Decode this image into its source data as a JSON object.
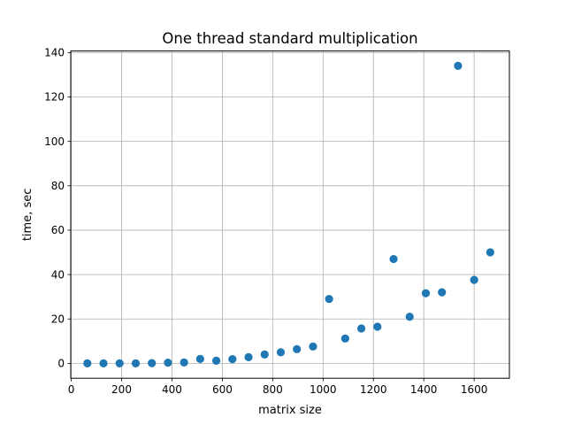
{
  "chart_data": {
    "type": "scatter",
    "title": "One thread standard multiplication",
    "xlabel": "matrix size",
    "ylabel": "time, sec",
    "xlim": [
      -2,
      1740
    ],
    "ylim": [
      -6.7,
      140.7
    ],
    "xticks": [
      0,
      200,
      400,
      600,
      800,
      1000,
      1200,
      1400,
      1600
    ],
    "yticks": [
      0,
      20,
      40,
      60,
      80,
      100,
      120,
      140
    ],
    "grid": true,
    "marker_color": "#1f77b4",
    "series": [
      {
        "x": [
          64,
          128,
          192,
          256,
          320,
          384,
          448,
          512,
          576,
          640,
          704,
          768,
          832,
          896,
          960,
          1024,
          1088,
          1152,
          1216,
          1280,
          1344,
          1408,
          1472,
          1536,
          1600,
          1664
        ],
        "y": [
          0.0,
          0.0,
          0.0,
          0.0,
          0.1,
          0.3,
          0.4,
          2.0,
          1.2,
          1.9,
          2.8,
          4.0,
          5.0,
          6.4,
          7.6,
          29.0,
          11.2,
          15.7,
          16.5,
          47.0,
          21.0,
          31.6,
          32.0,
          134.0,
          37.6,
          50.0
        ]
      }
    ]
  }
}
